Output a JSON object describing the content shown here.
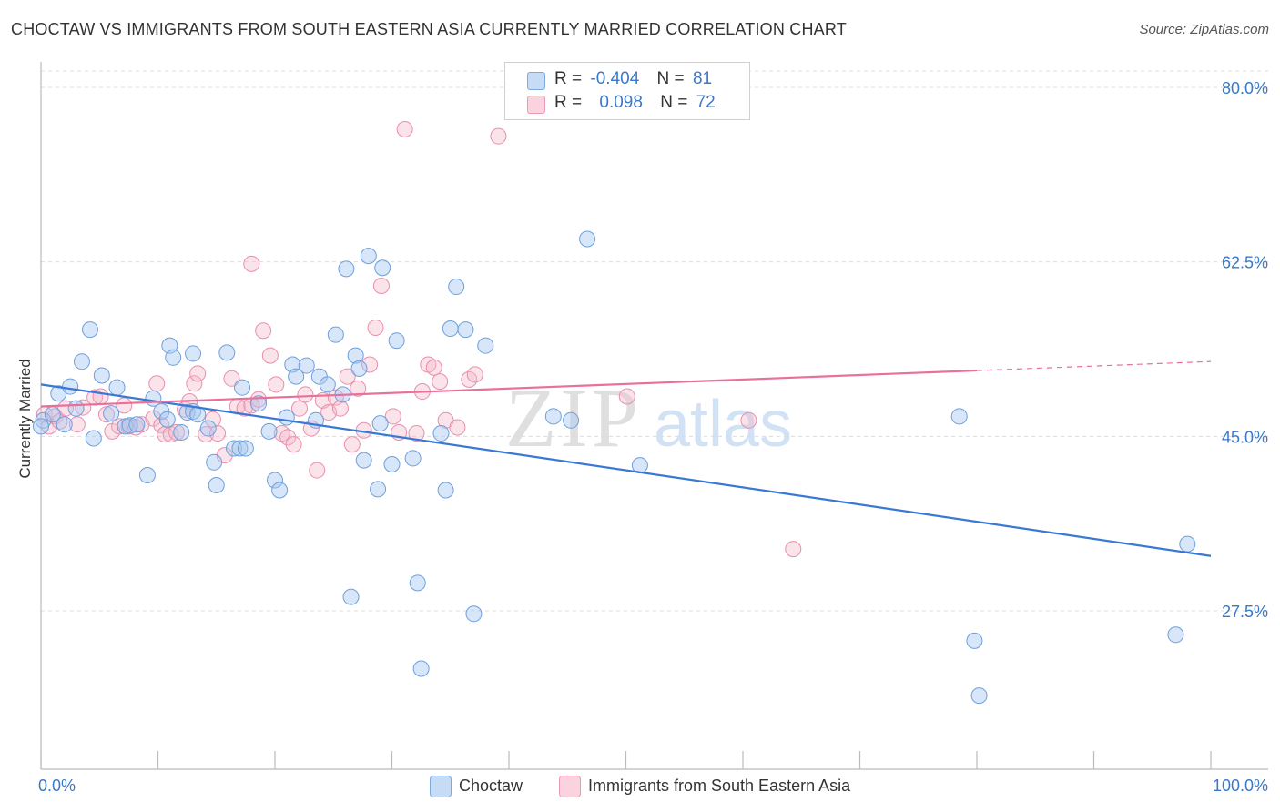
{
  "header": {
    "title": "CHOCTAW VS IMMIGRANTS FROM SOUTH EASTERN ASIA CURRENTLY MARRIED CORRELATION CHART",
    "source": "Source: ZipAtlas.com"
  },
  "watermark": {
    "zip": "ZIP",
    "atlas": "atlas"
  },
  "legend_top": {
    "rows": [
      {
        "r_label": "R =",
        "r_value": "-0.404",
        "n_label": "N =",
        "n_value": "81",
        "color": "#a7c8f0"
      },
      {
        "r_label": "R =",
        "r_value": "0.098",
        "n_label": "N =",
        "n_value": "72",
        "color": "#f5b8cb"
      }
    ]
  },
  "legend_bottom": {
    "items": [
      {
        "label": "Choctaw",
        "color": "#a7c8f0"
      },
      {
        "label": "Immigrants from South Eastern Asia",
        "color": "#f5b8cb"
      }
    ]
  },
  "chart_data": {
    "type": "scatter",
    "title": "CHOCTAW VS IMMIGRANTS FROM SOUTH EASTERN ASIA CURRENTLY MARRIED CORRELATION CHART",
    "xlabel": "",
    "ylabel": "Currently Married",
    "xlim": [
      0,
      100
    ],
    "ylim": [
      12,
      82
    ],
    "x_tick_labels": [
      "0.0%",
      "100.0%"
    ],
    "y_ticks": [
      27.5,
      45.0,
      62.5,
      80.0
    ],
    "y_tick_labels": [
      "27.5%",
      "45.0%",
      "62.5%",
      "80.0%"
    ],
    "grid": true,
    "legend_position": "top-center",
    "colors": {
      "choctaw": "#3a78d6",
      "sea": "#e8709a"
    },
    "series": [
      {
        "name": "Choctaw",
        "trend": {
          "x0": 0,
          "y0": 50.2,
          "x1": 100,
          "y1": 33.0
        },
        "points": [
          [
            0.2,
            46.6
          ],
          [
            1.0,
            47.2
          ],
          [
            1.5,
            49.3
          ],
          [
            2.0,
            46.2
          ],
          [
            2.5,
            50.0
          ],
          [
            3.0,
            47.8
          ],
          [
            3.5,
            52.5
          ],
          [
            4.2,
            55.7
          ],
          [
            4.5,
            44.8
          ],
          [
            5.2,
            51.1
          ],
          [
            6.0,
            47.3
          ],
          [
            6.5,
            49.9
          ],
          [
            7.2,
            46.0
          ],
          [
            7.6,
            46.1
          ],
          [
            8.2,
            46.2
          ],
          [
            9.1,
            41.1
          ],
          [
            9.6,
            48.8
          ],
          [
            10.3,
            47.5
          ],
          [
            10.8,
            46.7
          ],
          [
            11.0,
            54.1
          ],
          [
            11.3,
            52.9
          ],
          [
            12.0,
            45.4
          ],
          [
            12.5,
            47.4
          ],
          [
            13.0,
            47.5
          ],
          [
            13.0,
            53.3
          ],
          [
            13.4,
            47.2
          ],
          [
            14.3,
            45.8
          ],
          [
            14.8,
            42.4
          ],
          [
            15.0,
            40.1
          ],
          [
            15.9,
            53.4
          ],
          [
            16.5,
            43.8
          ],
          [
            17.0,
            43.8
          ],
          [
            17.5,
            43.8
          ],
          [
            17.2,
            49.9
          ],
          [
            18.6,
            48.3
          ],
          [
            19.5,
            45.5
          ],
          [
            20.0,
            40.6
          ],
          [
            20.4,
            39.6
          ],
          [
            21.0,
            46.9
          ],
          [
            21.5,
            52.2
          ],
          [
            21.8,
            51.0
          ],
          [
            22.7,
            52.1
          ],
          [
            23.5,
            46.6
          ],
          [
            23.8,
            51.0
          ],
          [
            24.5,
            50.2
          ],
          [
            25.2,
            55.2
          ],
          [
            25.8,
            49.2
          ],
          [
            26.1,
            61.8
          ],
          [
            26.5,
            28.9
          ],
          [
            26.9,
            53.1
          ],
          [
            27.2,
            51.8
          ],
          [
            27.6,
            42.6
          ],
          [
            28.0,
            63.1
          ],
          [
            28.8,
            39.7
          ],
          [
            29.0,
            46.3
          ],
          [
            29.2,
            61.9
          ],
          [
            30.0,
            42.2
          ],
          [
            30.4,
            54.6
          ],
          [
            31.8,
            42.8
          ],
          [
            32.2,
            30.3
          ],
          [
            32.5,
            21.7
          ],
          [
            34.2,
            45.3
          ],
          [
            34.6,
            39.6
          ],
          [
            35.0,
            55.8
          ],
          [
            35.5,
            60.0
          ],
          [
            36.3,
            55.7
          ],
          [
            37.0,
            27.2
          ],
          [
            38.0,
            54.1
          ],
          [
            43.8,
            47.0
          ],
          [
            45.3,
            46.6
          ],
          [
            46.7,
            64.8
          ],
          [
            51.2,
            42.1
          ],
          [
            78.5,
            47.0
          ],
          [
            79.8,
            24.5
          ],
          [
            80.2,
            19.0
          ],
          [
            97.0,
            25.1
          ],
          [
            98.0,
            34.2
          ],
          [
            0.0,
            46.0
          ]
        ]
      },
      {
        "name": "Immigrants from South Eastern Asia",
        "trend": {
          "x0": 0,
          "y0": 48.0,
          "x1": 100,
          "y1": 52.5,
          "solid_until": 80
        },
        "points": [
          [
            0.3,
            47.2
          ],
          [
            0.7,
            46.0
          ],
          [
            1.2,
            47.0
          ],
          [
            1.6,
            46.5
          ],
          [
            2.1,
            47.8
          ],
          [
            3.1,
            46.2
          ],
          [
            3.6,
            47.9
          ],
          [
            4.6,
            48.9
          ],
          [
            5.1,
            49.0
          ],
          [
            5.6,
            47.2
          ],
          [
            6.1,
            45.5
          ],
          [
            6.7,
            46.0
          ],
          [
            7.1,
            48.1
          ],
          [
            7.5,
            46.0
          ],
          [
            8.1,
            45.9
          ],
          [
            8.6,
            46.2
          ],
          [
            9.6,
            46.8
          ],
          [
            9.9,
            50.3
          ],
          [
            10.3,
            46.1
          ],
          [
            10.6,
            45.2
          ],
          [
            11.1,
            45.2
          ],
          [
            11.6,
            45.4
          ],
          [
            12.3,
            47.7
          ],
          [
            12.7,
            48.5
          ],
          [
            13.1,
            50.3
          ],
          [
            13.4,
            51.3
          ],
          [
            14.1,
            45.2
          ],
          [
            14.7,
            46.7
          ],
          [
            15.1,
            45.3
          ],
          [
            15.7,
            43.1
          ],
          [
            16.3,
            50.8
          ],
          [
            16.8,
            48.0
          ],
          [
            17.4,
            47.8
          ],
          [
            18.0,
            48.1
          ],
          [
            18.6,
            48.7
          ],
          [
            18.0,
            62.3
          ],
          [
            19.0,
            55.6
          ],
          [
            19.6,
            53.1
          ],
          [
            20.1,
            50.2
          ],
          [
            20.6,
            45.3
          ],
          [
            21.1,
            44.9
          ],
          [
            21.6,
            44.2
          ],
          [
            22.1,
            47.8
          ],
          [
            22.6,
            49.2
          ],
          [
            23.1,
            45.8
          ],
          [
            23.6,
            41.6
          ],
          [
            24.1,
            48.6
          ],
          [
            24.6,
            47.4
          ],
          [
            25.2,
            48.9
          ],
          [
            25.6,
            47.8
          ],
          [
            26.2,
            51.0
          ],
          [
            26.6,
            44.2
          ],
          [
            27.1,
            49.8
          ],
          [
            27.6,
            45.6
          ],
          [
            28.1,
            52.2
          ],
          [
            28.6,
            55.9
          ],
          [
            29.1,
            60.1
          ],
          [
            30.1,
            47.0
          ],
          [
            30.6,
            45.4
          ],
          [
            31.1,
            75.8
          ],
          [
            32.1,
            45.3
          ],
          [
            32.6,
            49.5
          ],
          [
            33.1,
            52.2
          ],
          [
            33.6,
            51.9
          ],
          [
            34.1,
            50.5
          ],
          [
            34.6,
            46.6
          ],
          [
            35.6,
            45.9
          ],
          [
            36.6,
            50.7
          ],
          [
            37.1,
            51.2
          ],
          [
            39.1,
            75.1
          ],
          [
            50.1,
            49.0
          ],
          [
            60.5,
            46.6
          ],
          [
            64.3,
            33.7
          ]
        ]
      }
    ]
  }
}
